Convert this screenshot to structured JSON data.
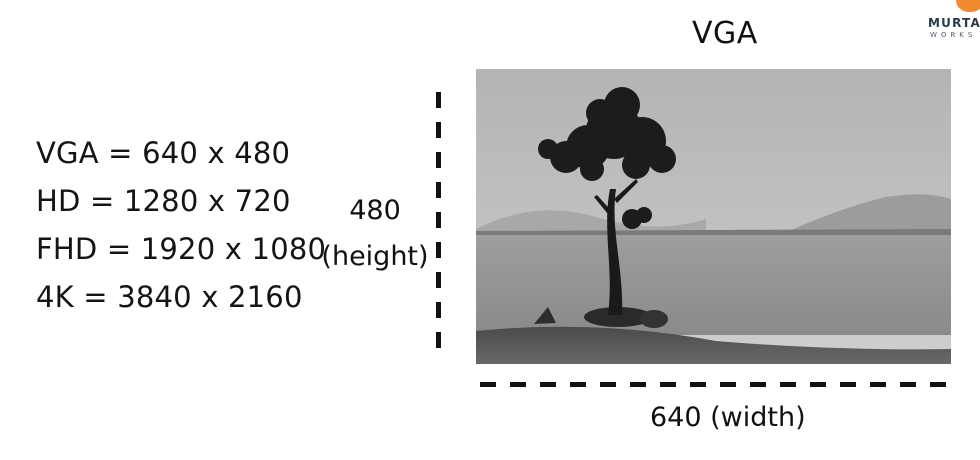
{
  "title": "VGA",
  "logo": {
    "name": "MURTAZ",
    "sub": "WORKS"
  },
  "resolutions": [
    "VGA =  640 x 480",
    "HD = 1280 x 720",
    "FHD = 1920 x 1080",
    "4K = 3840 x 2160"
  ],
  "height_label": {
    "value": "480",
    "caption": "(height)"
  },
  "width_label": "640 (width)",
  "photo": {
    "description_icon": "lone-tree-landscape"
  },
  "colors": {
    "ink": "#111111",
    "logo_accent": "#f08a30",
    "logo_text": "#2b3a4a"
  }
}
